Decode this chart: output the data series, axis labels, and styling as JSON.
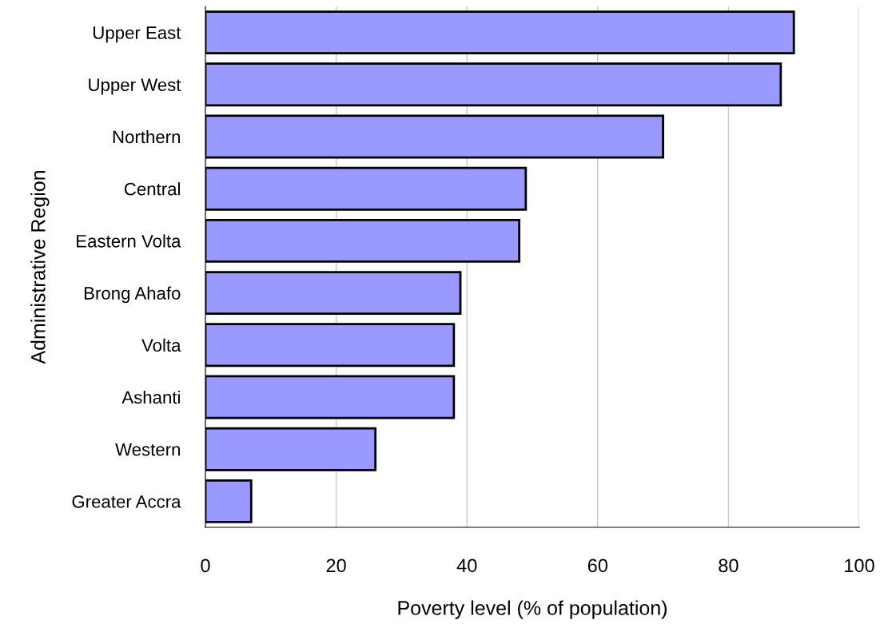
{
  "chart_data": {
    "type": "bar",
    "orientation": "horizontal",
    "xlabel": "Poverty level (% of population)",
    "ylabel": "Administrative Region",
    "categories": [
      "Upper East",
      "Upper West",
      "Northern",
      "Central",
      "Eastern Volta",
      "Brong Ahafo",
      "Volta",
      "Ashanti",
      "Western",
      "Greater Accra"
    ],
    "values": [
      90,
      88,
      70,
      49,
      48,
      39,
      38,
      38,
      26,
      7
    ],
    "color": "#9999ff",
    "xlim": [
      0,
      100
    ],
    "xticks": [
      0,
      20,
      40,
      60,
      80,
      100
    ],
    "grid": "x",
    "legend": false
  }
}
